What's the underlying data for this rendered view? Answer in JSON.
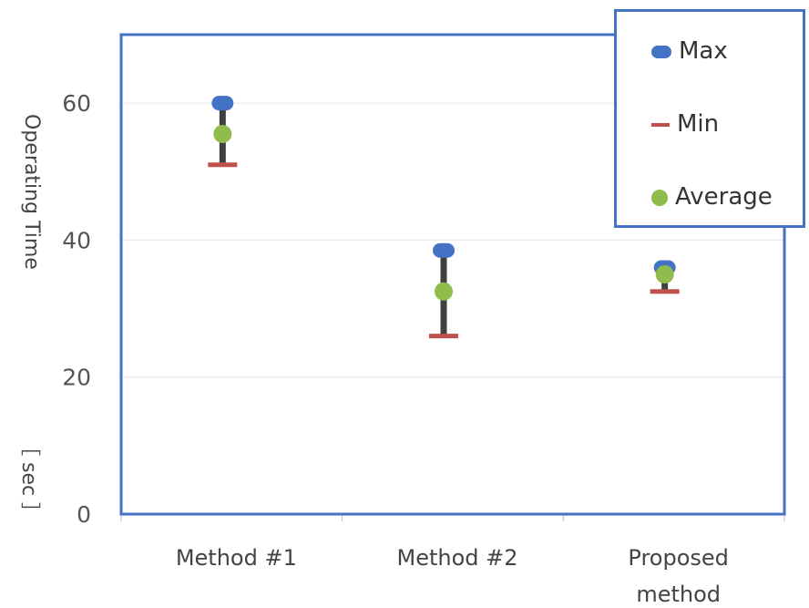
{
  "chart_data": {
    "type": "scatter",
    "title": "",
    "ylabel": "Operating Time",
    "yunit": "［ sec ］",
    "categories": [
      "Method #1",
      "Method #2",
      "Proposed method"
    ],
    "ylim": [
      0,
      70
    ],
    "yticks": [
      0,
      20,
      40,
      60
    ],
    "grid": true,
    "legend_position": "top-right",
    "series": [
      {
        "name": "Max",
        "values": [
          60,
          38.5,
          36
        ],
        "color": "#4472c4"
      },
      {
        "name": "Min",
        "values": [
          51,
          26,
          32.5
        ],
        "color": "#c0504d"
      },
      {
        "name": "Average",
        "values": [
          55.5,
          32.5,
          35
        ],
        "color": "#8fbc4a"
      }
    ]
  }
}
